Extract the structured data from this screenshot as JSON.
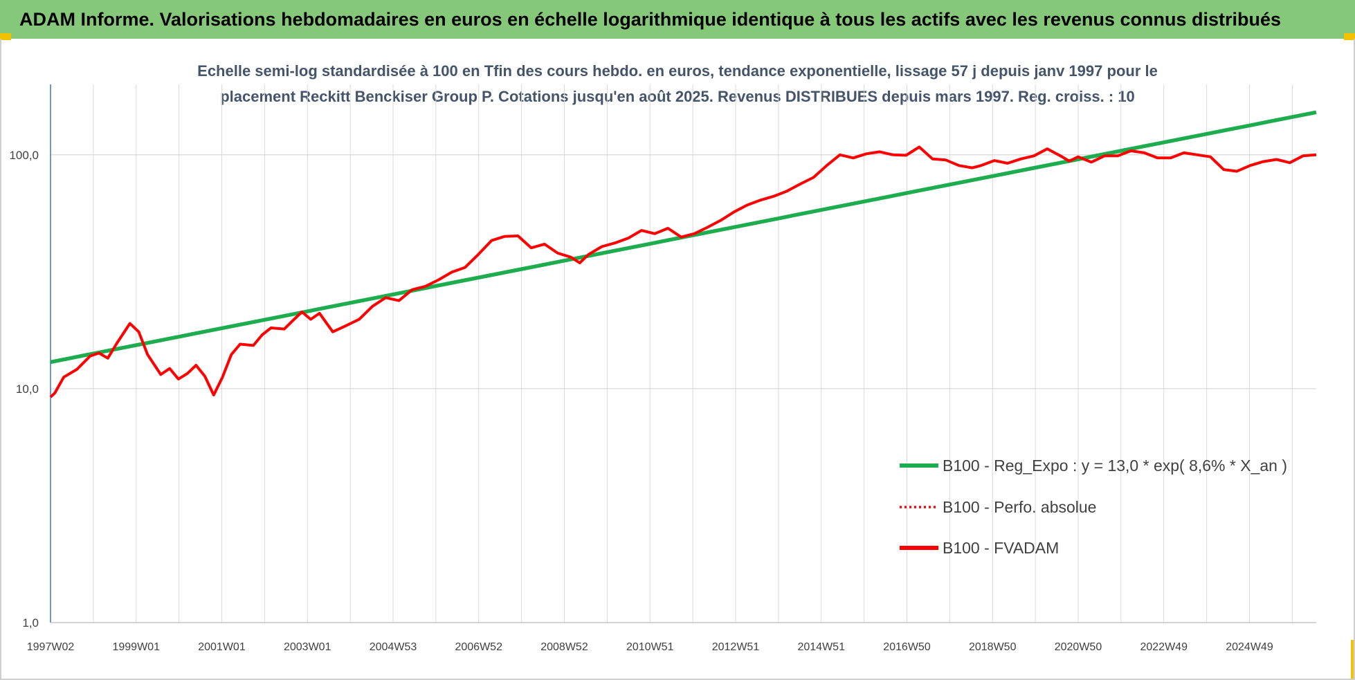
{
  "header": {
    "title": "ADAM Informe. Valorisations hebdomadaires en euros en échelle logarithmique identique à tous les actifs avec les revenus connus distribués"
  },
  "colors": {
    "banner": "#86c879",
    "regression": "#1ead4e",
    "fvadam": "#ff0000",
    "perfo": "#ff0000",
    "grid": "#d9d9d9",
    "axis": "#4472c4"
  },
  "chart_data": {
    "type": "line",
    "title_lines": [
      "Echelle semi-log standardisée à 100 en Tfin des cours hebdo. en euros, tendance exponentielle, lissage 57 j depuis janv 1997 pour le",
      "placement Reckitt Benckiser Group P. Cotations jusqu'en août 2025. Revenus DISTRIBUES depuis mars 1997. Reg. croiss. : 10"
    ],
    "y_scale": "log",
    "ylim": [
      1,
      200
    ],
    "y_ticks": [
      "1,0",
      "10,0",
      "100,0"
    ],
    "x_ticks": [
      "1997W02",
      "1999W01",
      "2001W01",
      "2003W01",
      "2004W53",
      "2006W52",
      "2008W52",
      "2010W51",
      "2012W51",
      "2014W51",
      "2016W50",
      "2018W50",
      "2020W50",
      "2022W49",
      "2024W49"
    ],
    "xlim": [
      1997.0,
      2025.7
    ],
    "grid": true,
    "legend_position": "right",
    "series": [
      {
        "name": "B100 - Reg_Expo : y = 13,0 * exp( 8,6% *  X_an )",
        "style": "solid",
        "color": "#1ead4e",
        "x": [
          1997.0,
          2025.7
        ],
        "y": [
          13.0,
          152
        ]
      },
      {
        "name": "B100 - Perfo. absolue",
        "style": "dotted",
        "color": "#ff0000",
        "x": [],
        "y": []
      },
      {
        "name": "B100 - FVADAM",
        "style": "solid",
        "color": "#ff0000",
        "x": [
          1997.0,
          1997.1,
          1997.3,
          1997.6,
          1997.9,
          1998.1,
          1998.3,
          1998.5,
          1998.8,
          1999.0,
          1999.2,
          1999.5,
          1999.7,
          1999.9,
          2000.1,
          2000.3,
          2000.5,
          2000.7,
          2000.9,
          2001.1,
          2001.3,
          2001.6,
          2001.8,
          2002.0,
          2002.3,
          2002.5,
          2002.7,
          2002.9,
          2003.1,
          2003.4,
          2003.7,
          2004.0,
          2004.3,
          2004.6,
          2004.9,
          2005.2,
          2005.5,
          2005.8,
          2006.1,
          2006.4,
          2006.7,
          2007.0,
          2007.3,
          2007.6,
          2007.9,
          2008.2,
          2008.5,
          2008.8,
          2009.0,
          2009.2,
          2009.5,
          2009.8,
          2010.1,
          2010.4,
          2010.7,
          2011.0,
          2011.3,
          2011.6,
          2011.9,
          2012.2,
          2012.5,
          2012.8,
          2013.1,
          2013.4,
          2013.7,
          2014.0,
          2014.3,
          2014.6,
          2014.9,
          2015.2,
          2015.5,
          2015.8,
          2016.1,
          2016.4,
          2016.7,
          2017.0,
          2017.3,
          2017.6,
          2017.9,
          2018.1,
          2018.4,
          2018.7,
          2019.0,
          2019.3,
          2019.6,
          2019.9,
          2020.1,
          2020.3,
          2020.6,
          2020.9,
          2021.2,
          2021.5,
          2021.8,
          2022.1,
          2022.4,
          2022.7,
          2023.0,
          2023.3,
          2023.6,
          2023.9,
          2024.2,
          2024.5,
          2024.8,
          2025.1,
          2025.4,
          2025.7
        ],
        "y": [
          9.2,
          9.6,
          11.2,
          12.1,
          13.8,
          14.2,
          13.5,
          15.6,
          19.0,
          17.5,
          14.0,
          11.5,
          12.2,
          11.0,
          11.6,
          12.6,
          11.3,
          9.4,
          11.2,
          14.0,
          15.5,
          15.3,
          17.0,
          18.2,
          18.0,
          19.6,
          21.3,
          19.8,
          21.0,
          17.5,
          18.6,
          19.8,
          22.5,
          24.5,
          23.8,
          26.5,
          27.4,
          29.2,
          31.5,
          33.0,
          37.5,
          43.0,
          44.8,
          45.0,
          40.0,
          41.5,
          38.0,
          36.5,
          34.5,
          37.5,
          40.5,
          42.0,
          44.0,
          47.5,
          46.0,
          48.5,
          44.5,
          46.0,
          49.0,
          52.5,
          57.0,
          61.0,
          64.0,
          66.5,
          70.0,
          75.0,
          80.0,
          90.0,
          100.0,
          97.0,
          101.0,
          103.0,
          100.0,
          99.5,
          108.0,
          96.0,
          95.0,
          90.0,
          88.0,
          90.0,
          94.5,
          92.0,
          96.0,
          99.0,
          106.0,
          99.0,
          94.0,
          98.0,
          93.0,
          99.0,
          99.0,
          104.0,
          102.0,
          97.0,
          97.0,
          102.0,
          100.0,
          98.0,
          86.5,
          85.0,
          90.0,
          93.5,
          95.5,
          92.5,
          99.0,
          100.0
        ]
      }
    ]
  }
}
